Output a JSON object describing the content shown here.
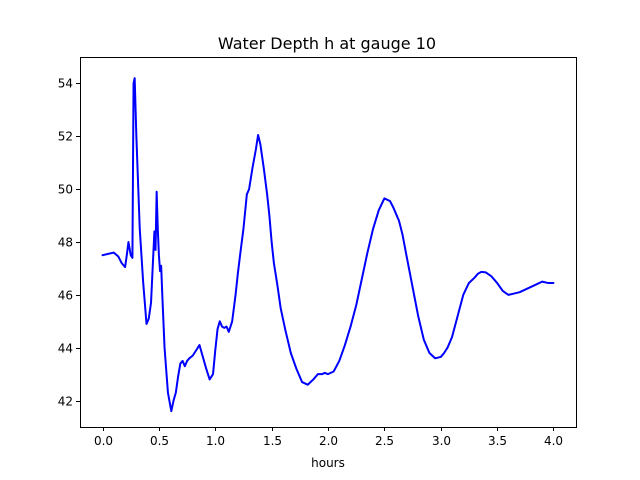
{
  "chart_data": {
    "type": "line",
    "title": "Water Depth h at gauge 10",
    "xlabel": "hours",
    "ylabel": "",
    "xlim": [
      -0.2,
      4.2
    ],
    "ylim": [
      41.0,
      55.0
    ],
    "xticks": [
      0.0,
      0.5,
      1.0,
      1.5,
      2.0,
      2.5,
      3.0,
      3.5,
      4.0
    ],
    "xtick_labels": [
      "0.0",
      "0.5",
      "1.0",
      "1.5",
      "2.0",
      "2.5",
      "3.0",
      "3.5",
      "4.0"
    ],
    "yticks": [
      42,
      44,
      46,
      48,
      50,
      52,
      54
    ],
    "ytick_labels": [
      "42",
      "44",
      "46",
      "48",
      "50",
      "52",
      "54"
    ],
    "grid": false,
    "series": [
      {
        "color": "#0000ff",
        "x": [
          0.0,
          0.05,
          0.1,
          0.14,
          0.17,
          0.2,
          0.215,
          0.23,
          0.25,
          0.265,
          0.275,
          0.285,
          0.3,
          0.33,
          0.36,
          0.39,
          0.41,
          0.43,
          0.45,
          0.46,
          0.47,
          0.48,
          0.49,
          0.5,
          0.51,
          0.52,
          0.53,
          0.55,
          0.58,
          0.61,
          0.63,
          0.65,
          0.67,
          0.69,
          0.71,
          0.73,
          0.75,
          0.77,
          0.8,
          0.83,
          0.86,
          0.88,
          0.9,
          0.92,
          0.95,
          0.98,
          1.0,
          1.02,
          1.04,
          1.06,
          1.08,
          1.1,
          1.12,
          1.15,
          1.18,
          1.2,
          1.22,
          1.25,
          1.28,
          1.3,
          1.33,
          1.36,
          1.38,
          1.4,
          1.43,
          1.46,
          1.48,
          1.5,
          1.52,
          1.55,
          1.58,
          1.62,
          1.67,
          1.72,
          1.77,
          1.82,
          1.87,
          1.91,
          1.93,
          1.95,
          1.97,
          2.0,
          2.05,
          2.1,
          2.15,
          2.2,
          2.25,
          2.3,
          2.35,
          2.4,
          2.45,
          2.5,
          2.55,
          2.58,
          2.6,
          2.63,
          2.66,
          2.7,
          2.75,
          2.8,
          2.85,
          2.9,
          2.95,
          3.0,
          3.03,
          3.06,
          3.1,
          3.15,
          3.2,
          3.25,
          3.3,
          3.33,
          3.36,
          3.4,
          3.45,
          3.5,
          3.55,
          3.6,
          3.65,
          3.7,
          3.75,
          3.8,
          3.85,
          3.9,
          3.95,
          4.0
        ],
        "y": [
          47.5,
          47.55,
          47.6,
          47.45,
          47.2,
          47.05,
          47.5,
          48.0,
          47.5,
          47.4,
          54.0,
          54.2,
          52.0,
          48.5,
          46.5,
          44.9,
          45.1,
          45.7,
          47.5,
          48.4,
          47.7,
          49.9,
          48.5,
          47.5,
          46.9,
          47.1,
          46.0,
          44.0,
          42.3,
          41.6,
          42.0,
          42.3,
          42.9,
          43.4,
          43.5,
          43.3,
          43.5,
          43.6,
          43.7,
          43.9,
          44.1,
          43.8,
          43.5,
          43.2,
          42.8,
          43.0,
          43.9,
          44.7,
          45.0,
          44.8,
          44.75,
          44.8,
          44.6,
          45.0,
          46.0,
          46.8,
          47.5,
          48.5,
          49.8,
          50.0,
          50.8,
          51.5,
          52.05,
          51.7,
          50.8,
          49.8,
          49.0,
          48.0,
          47.2,
          46.4,
          45.5,
          44.7,
          43.8,
          43.2,
          42.7,
          42.6,
          42.8,
          43.0,
          43.0,
          43.0,
          43.05,
          43.0,
          43.1,
          43.5,
          44.1,
          44.8,
          45.6,
          46.6,
          47.6,
          48.5,
          49.2,
          49.65,
          49.55,
          49.3,
          49.1,
          48.8,
          48.3,
          47.4,
          46.3,
          45.2,
          44.3,
          43.8,
          43.6,
          43.65,
          43.8,
          44.0,
          44.4,
          45.2,
          46.0,
          46.45,
          46.65,
          46.8,
          46.87,
          46.85,
          46.7,
          46.45,
          46.15,
          46.0,
          46.05,
          46.1,
          46.2,
          46.3,
          46.4,
          46.5,
          46.45,
          46.45
        ]
      }
    ]
  }
}
